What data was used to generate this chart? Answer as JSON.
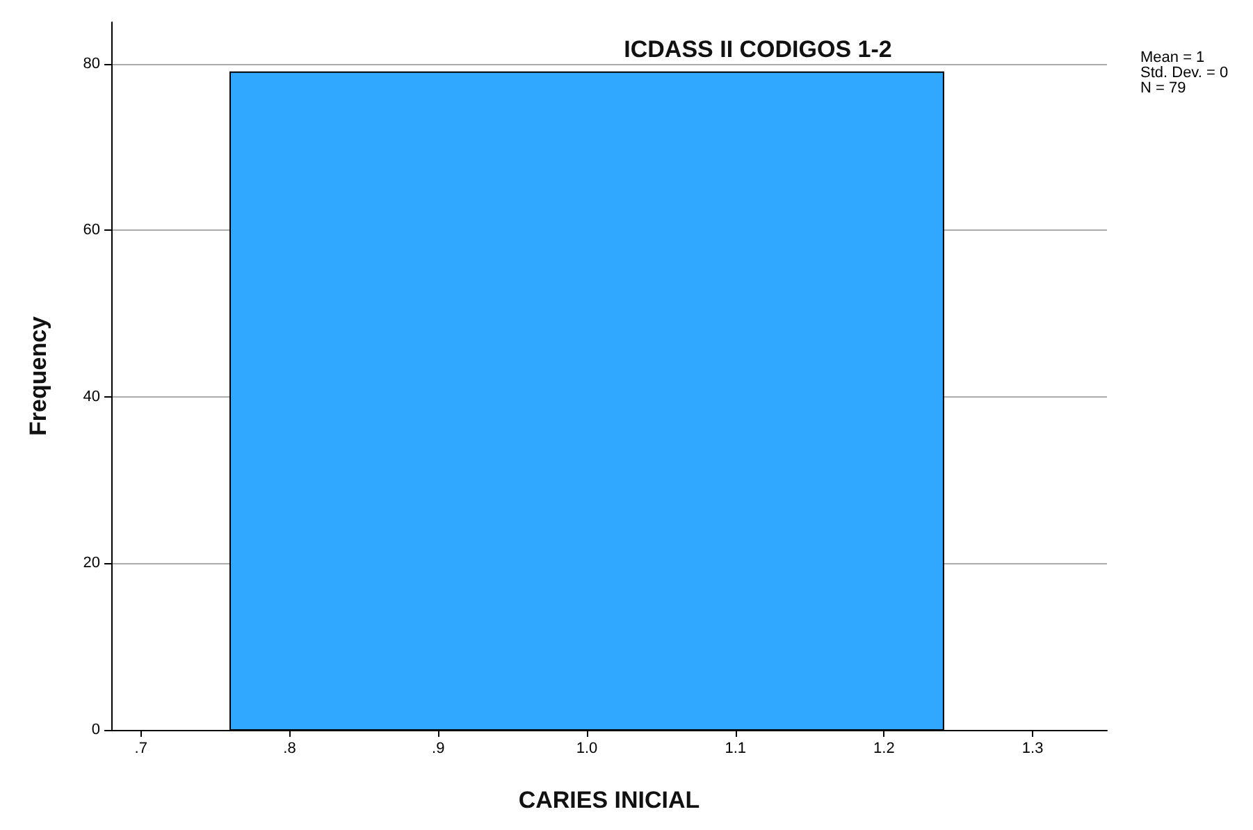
{
  "chart_data": {
    "type": "histogram",
    "title": "ICDASS II CODIGOS 1-2",
    "xlabel": "CARIES INICIAL",
    "ylabel": "Frequency",
    "bins": [
      0.76,
      1.24
    ],
    "values": [
      79
    ],
    "color": "#30a8ff",
    "xlim": [
      0.68,
      1.35
    ],
    "xticks": [
      {
        "value": 0.7,
        "label": ".7"
      },
      {
        "value": 0.8,
        "label": ".8"
      },
      {
        "value": 0.9,
        "label": ".9"
      },
      {
        "value": 1.0,
        "label": "1.0"
      },
      {
        "value": 1.1,
        "label": "1.1"
      },
      {
        "value": 1.2,
        "label": "1.2"
      },
      {
        "value": 1.3,
        "label": "1.3"
      }
    ],
    "ylim": [
      0,
      85
    ],
    "yticks": [
      0,
      20,
      40,
      60,
      80
    ],
    "grid": "y",
    "annotations": [
      "Mean = 1",
      "Std. Dev. = 0",
      "N = 79"
    ]
  }
}
